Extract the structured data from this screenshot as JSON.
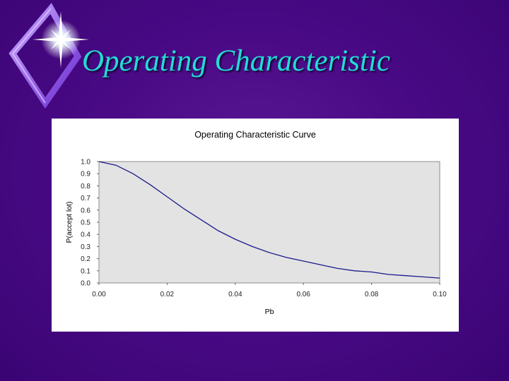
{
  "slide": {
    "title": "Operating Characteristic"
  },
  "colors": {
    "background": "#4a0a86",
    "title": "#22dcd6",
    "plot_area": "#e3e3e3",
    "line": "#1a1a8c"
  },
  "icons": {
    "logo": "sparkle-diamond-icon"
  },
  "chart_data": {
    "type": "line",
    "title": "Operating Characteristic Curve",
    "xlabel": "Pb",
    "ylabel": "P(accept lot)",
    "xlim": [
      0,
      0.1
    ],
    "ylim": [
      0,
      1
    ],
    "x_ticks": [
      "0.00",
      "0.02",
      "0.04",
      "0.06",
      "0.08",
      "0.10"
    ],
    "y_ticks": [
      "0.0",
      "0.1",
      "0.2",
      "0.3",
      "0.4",
      "0.5",
      "0.6",
      "0.7",
      "0.8",
      "0.9",
      "1.0"
    ],
    "grid": false,
    "legend": "none",
    "series": [
      {
        "x": [
          0,
          0.005,
          0.01,
          0.015,
          0.02,
          0.025,
          0.03,
          0.035,
          0.04,
          0.045,
          0.05,
          0.055,
          0.06,
          0.065,
          0.07,
          0.075,
          0.08,
          0.085,
          0.09,
          0.095,
          0.1
        ],
        "values": [
          1.0,
          0.97,
          0.9,
          0.81,
          0.71,
          0.61,
          0.52,
          0.43,
          0.36,
          0.3,
          0.25,
          0.21,
          0.18,
          0.15,
          0.12,
          0.1,
          0.09,
          0.07,
          0.06,
          0.05,
          0.04
        ]
      }
    ]
  }
}
